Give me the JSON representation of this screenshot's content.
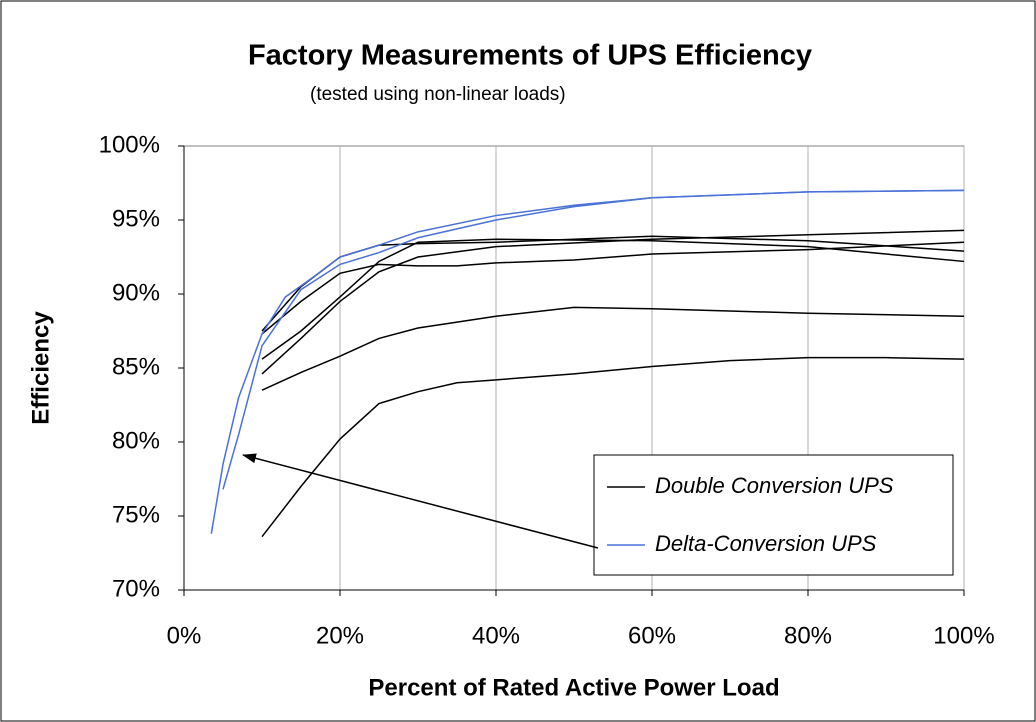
{
  "chart_data": {
    "type": "line",
    "title": "Factory Measurements of UPS Efficiency",
    "subtitle": "(tested using non-linear loads)",
    "x_label": "Percent of Rated Active Power Load",
    "y_label": "Efficiency",
    "xlim": [
      0,
      100
    ],
    "xticks": [
      {
        "value": 0,
        "label": "0%"
      },
      {
        "value": 20,
        "label": "20%"
      },
      {
        "value": 40,
        "label": "40%"
      },
      {
        "value": 60,
        "label": "60%"
      },
      {
        "value": 80,
        "label": "80%"
      },
      {
        "value": 100,
        "label": "100%"
      }
    ],
    "ylim": [
      70,
      100
    ],
    "yticks": [
      {
        "value": 70,
        "label": "70%"
      },
      {
        "value": 75,
        "label": "75%"
      },
      {
        "value": 80,
        "label": "80%"
      },
      {
        "value": 85,
        "label": "85%"
      },
      {
        "value": 90,
        "label": "90%"
      },
      {
        "value": 95,
        "label": "95%"
      },
      {
        "value": 100,
        "label": "100%"
      }
    ],
    "grid": "x",
    "series": [
      {
        "name": "Double Conversion UPS",
        "color": "#000000",
        "curves": [
          {
            "x": [
              10,
              15,
              20,
              25,
              30,
              35,
              40,
              50,
              60,
              70,
              80,
              90,
              100
            ],
            "values": [
              73.6,
              77,
              80.2,
              82.6,
              83.4,
              84,
              84.2,
              84.6,
              85.1,
              85.5,
              85.7,
              85.7,
              85.6
            ]
          },
          {
            "x": [
              10,
              15,
              20,
              25,
              30,
              40,
              50,
              60,
              80,
              100
            ],
            "values": [
              83.5,
              84.7,
              85.8,
              87,
              87.7,
              88.5,
              89.1,
              89,
              88.7,
              88.5
            ]
          },
          {
            "x": [
              10,
              15,
              20,
              25,
              30,
              40,
              60,
              80,
              100
            ],
            "values": [
              84.6,
              87,
              89.5,
              91.5,
              92.5,
              93.2,
              93.7,
              94,
              94.3
            ]
          },
          {
            "x": [
              10,
              15,
              20,
              25,
              30,
              40,
              60,
              80,
              100
            ],
            "values": [
              85.6,
              87.5,
              89.8,
              92.2,
              93.5,
              93.7,
              93.6,
              93.2,
              92.2
            ]
          },
          {
            "x": [
              10,
              15,
              20,
              25,
              30,
              35,
              40,
              50,
              60,
              80,
              100
            ],
            "values": [
              87.3,
              89.5,
              91.4,
              92,
              91.9,
              91.9,
              92.1,
              92.3,
              92.7,
              93,
              93.5
            ]
          },
          {
            "x": [
              10,
              15,
              20,
              25,
              30,
              40,
              50,
              60,
              80,
              100
            ],
            "values": [
              87.5,
              90.5,
              92.5,
              93.3,
              93.4,
              93.5,
              93.7,
              93.9,
              93.6,
              92.9
            ]
          }
        ]
      },
      {
        "name": "Delta-Conversion UPS",
        "color": "#4a72d8",
        "curves": [
          {
            "x": [
              3.5,
              5,
              7,
              10,
              13,
              17,
              20,
              25,
              30,
              40,
              50,
              60,
              80,
              100
            ],
            "values": [
              73.8,
              78.5,
              83,
              87.3,
              89.8,
              91.3,
              92.5,
              93.3,
              94.2,
              95.3,
              96,
              96.5,
              96.9,
              97
            ]
          },
          {
            "x": [
              5,
              7,
              10,
              15,
              20,
              25,
              30,
              40,
              50,
              60,
              80,
              100
            ],
            "values": [
              76.8,
              80.5,
              86.5,
              90.3,
              92,
              92.8,
              93.8,
              95,
              95.9,
              96.5,
              96.9,
              97
            ]
          }
        ]
      }
    ]
  }
}
